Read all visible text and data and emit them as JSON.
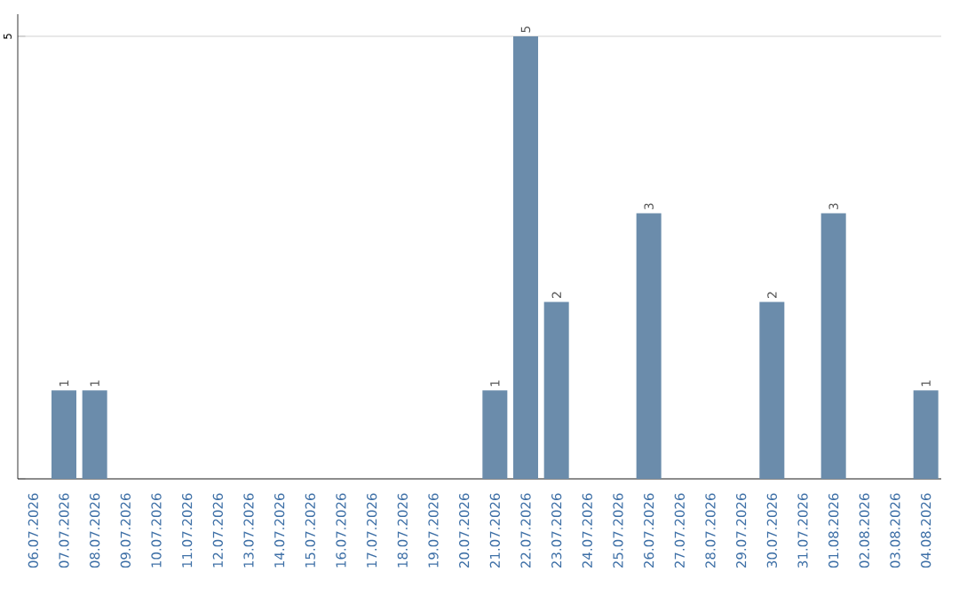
{
  "chart_data": {
    "type": "bar",
    "categories": [
      "06.07.2026",
      "07.07.2026",
      "08.07.2026",
      "09.07.2026",
      "10.07.2026",
      "11.07.2026",
      "12.07.2026",
      "13.07.2026",
      "14.07.2026",
      "15.07.2026",
      "16.07.2026",
      "17.07.2026",
      "18.07.2026",
      "19.07.2026",
      "20.07.2026",
      "21.07.2026",
      "22.07.2026",
      "23.07.2026",
      "24.07.2026",
      "25.07.2026",
      "26.07.2026",
      "27.07.2026",
      "28.07.2026",
      "29.07.2026",
      "30.07.2026",
      "31.07.2026",
      "01.08.2026",
      "02.08.2026",
      "03.08.2026",
      "04.08.2026"
    ],
    "values": [
      0,
      1,
      1,
      0,
      0,
      0,
      0,
      0,
      0,
      0,
      0,
      0,
      0,
      0,
      0,
      1,
      5,
      2,
      0,
      0,
      3,
      0,
      0,
      0,
      2,
      0,
      3,
      0,
      0,
      1
    ],
    "value_labels": [
      null,
      "1",
      "1",
      null,
      null,
      null,
      null,
      null,
      null,
      null,
      null,
      null,
      null,
      null,
      null,
      "1",
      "5",
      "2",
      null,
      null,
      "3",
      null,
      null,
      null,
      "2",
      null,
      "3",
      null,
      null,
      "1"
    ],
    "color": "#6b8cab",
    "ylim": [
      0,
      5.25
    ],
    "yticks": [
      {
        "value": 0,
        "label": null
      },
      5
    ],
    "grid": "y"
  }
}
